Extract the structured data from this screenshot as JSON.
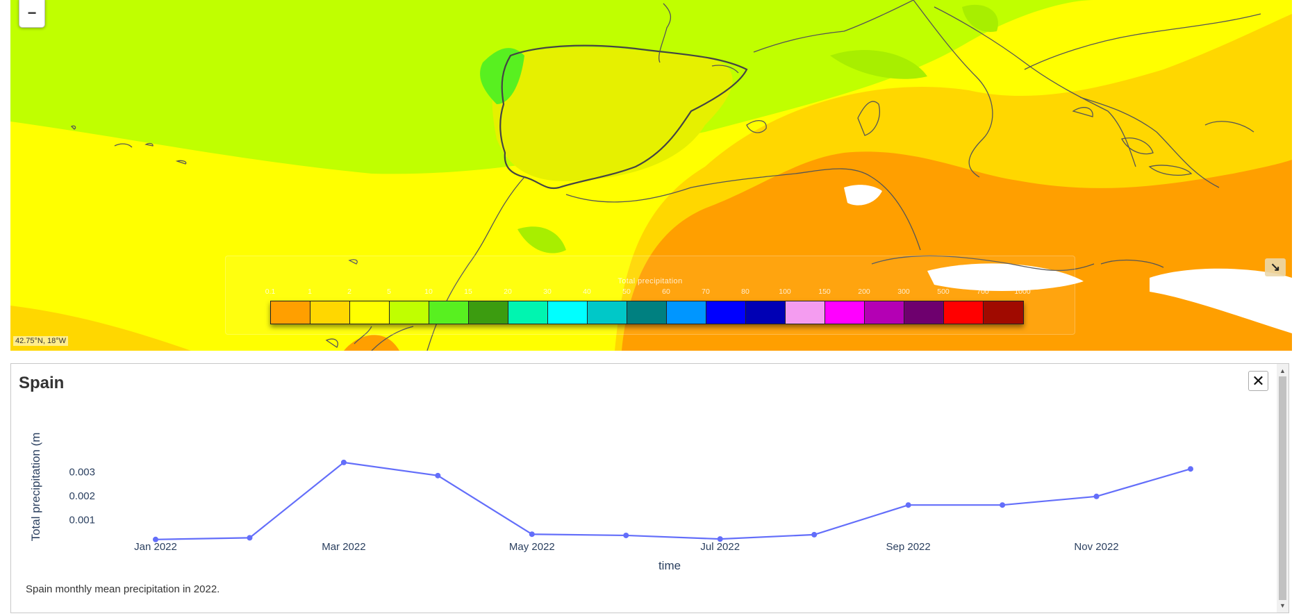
{
  "map": {
    "zoom_out_label": "−",
    "coordinates": "42.75°N, 18°W",
    "resize_icon": "↘",
    "colors": {
      "green_yellow": "#c0ff00",
      "yellow": "#ffff00",
      "gold": "#ffd700",
      "orange": "#ff9f00",
      "light_green": "#a8ee00",
      "bright_green": "#58f020",
      "coast": "#444444"
    }
  },
  "legend": {
    "title": "Total precipitation",
    "ticks": [
      "0.1",
      "1",
      "2",
      "5",
      "10",
      "15",
      "20",
      "30",
      "40",
      "50",
      "60",
      "70",
      "80",
      "100",
      "150",
      "200",
      "300",
      "500",
      "700",
      "1000"
    ],
    "colors": [
      "#ff9f00",
      "#ffd700",
      "#ffff00",
      "#c0ff00",
      "#58f020",
      "#3c9c10",
      "#00f5b0",
      "#00ffff",
      "#00c8c8",
      "#008080",
      "#0096ff",
      "#0000ff",
      "#0000b4",
      "#f49cf0",
      "#ff00ff",
      "#b400b4",
      "#6e006e",
      "#ff0000",
      "#a00a00"
    ]
  },
  "panel": {
    "title": "Spain",
    "close_label": "✕",
    "caption": "Spain monthly mean precipitation in 2022.",
    "scroll_up": "▲",
    "scroll_down": "▼"
  },
  "chart_data": {
    "type": "line",
    "x": [
      "2022-01",
      "2022-02",
      "2022-03",
      "2022-04",
      "2022-05",
      "2022-06",
      "2022-07",
      "2022-08",
      "2022-09",
      "2022-10",
      "2022-11",
      "2022-12"
    ],
    "x_tick_labels": [
      "Jan 2022",
      "Mar 2022",
      "May 2022",
      "Jul 2022",
      "Sep 2022",
      "Nov 2022"
    ],
    "y_tick_labels": [
      "0.001",
      "0.002",
      "0.003"
    ],
    "y_ticks": [
      0.001,
      0.002,
      0.003
    ],
    "series": [
      {
        "values": [
          0.00018,
          0.00025,
          0.0034,
          0.00285,
          0.0004,
          0.00035,
          0.0002,
          0.00038,
          0.00162,
          0.00162,
          0.00198,
          0.00313
        ],
        "color": "#636efa"
      }
    ],
    "xlabel": "time",
    "ylabel": "Total precipitation (m",
    "ylim": [
      0,
      0.0036
    ],
    "grid": false
  }
}
